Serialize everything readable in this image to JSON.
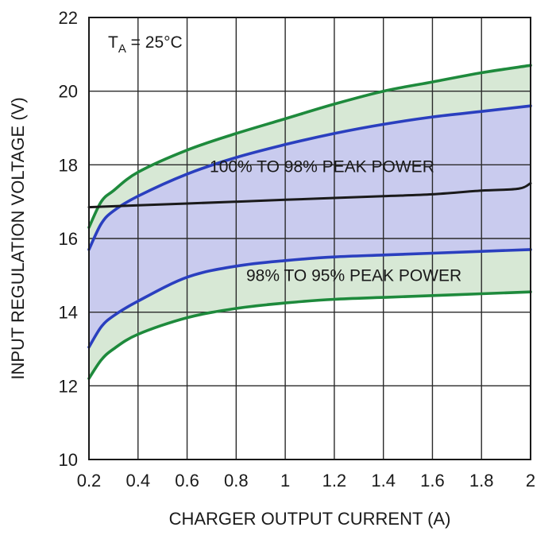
{
  "chart_data": {
    "type": "line",
    "title": "",
    "xlabel": "CHARGER OUTPUT CURRENT (A)",
    "ylabel": "INPUT REGULATION VOLTAGE (V)",
    "xlim": [
      0.2,
      2.0
    ],
    "ylim": [
      10,
      22
    ],
    "x_ticks": [
      0.2,
      0.4,
      0.6,
      0.8,
      1.0,
      1.2,
      1.4,
      1.6,
      1.8,
      2.0
    ],
    "x_tick_labels": [
      "0.2",
      "0.4",
      "0.6",
      "0.8",
      "1",
      "1.2",
      "1.4",
      "1.6",
      "1.8",
      "2"
    ],
    "y_ticks": [
      10,
      12,
      14,
      16,
      18,
      20,
      22
    ],
    "y_tick_labels": [
      "10",
      "12",
      "14",
      "16",
      "18",
      "20",
      "22"
    ],
    "grid": true,
    "condition_label": {
      "prefix": "T",
      "subscript": "A",
      "suffix": " = 25°C"
    },
    "annotations": [
      {
        "text": "100% TO 98% PEAK POWER",
        "x": 1.15,
        "y": 17.8
      },
      {
        "text": "98% TO 95% PEAK POWER",
        "x": 1.28,
        "y": 14.85
      }
    ],
    "series": [
      {
        "style": "green",
        "color": "#1e8a3c",
        "x": [
          0.2,
          0.25,
          0.3,
          0.4,
          0.6,
          0.8,
          1.0,
          1.2,
          1.4,
          1.6,
          1.8,
          2.0
        ],
        "values": [
          16.3,
          17.0,
          17.3,
          17.8,
          18.4,
          18.85,
          19.25,
          19.65,
          20.0,
          20.25,
          20.5,
          20.7
        ]
      },
      {
        "style": "blue",
        "color": "#2a3fbf",
        "x": [
          0.2,
          0.25,
          0.3,
          0.4,
          0.6,
          0.8,
          1.0,
          1.2,
          1.4,
          1.6,
          1.8,
          2.0
        ],
        "values": [
          15.7,
          16.4,
          16.75,
          17.15,
          17.75,
          18.2,
          18.55,
          18.85,
          19.1,
          19.3,
          19.45,
          19.6
        ]
      },
      {
        "style": "black",
        "color": "#1a1a1a",
        "x": [
          0.2,
          0.4,
          0.6,
          0.8,
          1.0,
          1.2,
          1.4,
          1.6,
          1.8,
          1.95,
          2.0
        ],
        "values": [
          16.85,
          16.9,
          16.95,
          17.0,
          17.05,
          17.1,
          17.15,
          17.2,
          17.3,
          17.35,
          17.5
        ]
      },
      {
        "style": "blue",
        "color": "#2a3fbf",
        "x": [
          0.2,
          0.25,
          0.3,
          0.4,
          0.6,
          0.8,
          1.0,
          1.2,
          1.4,
          1.6,
          1.8,
          2.0
        ],
        "values": [
          13.05,
          13.6,
          13.9,
          14.3,
          14.95,
          15.25,
          15.4,
          15.5,
          15.55,
          15.6,
          15.65,
          15.7
        ]
      },
      {
        "style": "green",
        "color": "#1e8a3c",
        "x": [
          0.2,
          0.25,
          0.3,
          0.4,
          0.6,
          0.8,
          1.0,
          1.2,
          1.4,
          1.6,
          1.8,
          2.0
        ],
        "values": [
          12.2,
          12.7,
          13.0,
          13.4,
          13.85,
          14.1,
          14.25,
          14.35,
          14.4,
          14.45,
          14.5,
          14.55
        ]
      }
    ],
    "bands": [
      {
        "fill": "#d7e8d5",
        "upper_series": 0,
        "lower_series": 4
      },
      {
        "fill": "#c9cbee",
        "upper_series": 1,
        "lower_series": 3
      }
    ]
  }
}
